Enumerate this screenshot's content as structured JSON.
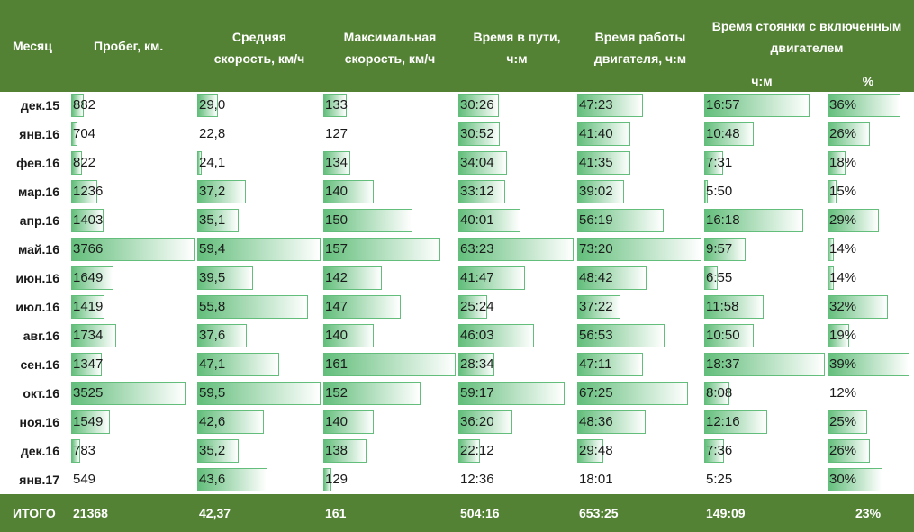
{
  "colors": {
    "header_bg": "#548235",
    "bar": "#63be7b",
    "header_text": "#ffffff"
  },
  "headers": {
    "month": "Месяц",
    "mileage": "Пробег, км.",
    "avg_speed": [
      "Средняя",
      "скорость, км/ч"
    ],
    "max_speed": [
      "Максимальная",
      "скорость, км/ч"
    ],
    "travel_time": [
      "Время в пути,",
      "ч:м"
    ],
    "engine_time": [
      "Время работы",
      "двигателя, ч:м"
    ],
    "idle": [
      "Время стоянки с включенным",
      "двигателем"
    ],
    "idle_hm": "ч:м",
    "idle_pct": "%"
  },
  "rows": [
    {
      "month": "дек.15",
      "mileage": "882",
      "avg": "29,0",
      "max": "133",
      "travel": "30:26",
      "engine": "47:23",
      "idle": "16:57",
      "pct": "36%"
    },
    {
      "month": "янв.16",
      "mileage": "704",
      "avg": "22,8",
      "max": "127",
      "travel": "30:52",
      "engine": "41:40",
      "idle": "10:48",
      "pct": "26%"
    },
    {
      "month": "фев.16",
      "mileage": "822",
      "avg": "24,1",
      "max": "134",
      "travel": "34:04",
      "engine": "41:35",
      "idle": "7:31",
      "pct": "18%"
    },
    {
      "month": "мар.16",
      "mileage": "1236",
      "avg": "37,2",
      "max": "140",
      "travel": "33:12",
      "engine": "39:02",
      "idle": "5:50",
      "pct": "15%"
    },
    {
      "month": "апр.16",
      "mileage": "1403",
      "avg": "35,1",
      "max": "150",
      "travel": "40:01",
      "engine": "56:19",
      "idle": "16:18",
      "pct": "29%"
    },
    {
      "month": "май.16",
      "mileage": "3766",
      "avg": "59,4",
      "max": "157",
      "travel": "63:23",
      "engine": "73:20",
      "idle": "9:57",
      "pct": "14%"
    },
    {
      "month": "июн.16",
      "mileage": "1649",
      "avg": "39,5",
      "max": "142",
      "travel": "41:47",
      "engine": "48:42",
      "idle": "6:55",
      "pct": "14%"
    },
    {
      "month": "июл.16",
      "mileage": "1419",
      "avg": "55,8",
      "max": "147",
      "travel": "25:24",
      "engine": "37:22",
      "idle": "11:58",
      "pct": "32%"
    },
    {
      "month": "авг.16",
      "mileage": "1734",
      "avg": "37,6",
      "max": "140",
      "travel": "46:03",
      "engine": "56:53",
      "idle": "10:50",
      "pct": "19%"
    },
    {
      "month": "сен.16",
      "mileage": "1347",
      "avg": "47,1",
      "max": "161",
      "travel": "28:34",
      "engine": "47:11",
      "idle": "18:37",
      "pct": "39%"
    },
    {
      "month": "окт.16",
      "mileage": "3525",
      "avg": "59,5",
      "max": "152",
      "travel": "59:17",
      "engine": "67:25",
      "idle": "8:08",
      "pct": "12%"
    },
    {
      "month": "ноя.16",
      "mileage": "1549",
      "avg": "42,6",
      "max": "140",
      "travel": "36:20",
      "engine": "48:36",
      "idle": "12:16",
      "pct": "25%"
    },
    {
      "month": "дек.16",
      "mileage": "783",
      "avg": "35,2",
      "max": "138",
      "travel": "22:12",
      "engine": "29:48",
      "idle": "7:36",
      "pct": "26%"
    },
    {
      "month": "янв.17",
      "mileage": "549",
      "avg": "43,6",
      "max": "129",
      "travel": "12:36",
      "engine": "18:01",
      "idle": "5:25",
      "pct": "30%"
    }
  ],
  "totals": {
    "label": "ИТОГО",
    "mileage": "21368",
    "avg": "42,37",
    "max": "161",
    "travel": "504:16",
    "engine": "653:25",
    "idle": "149:09",
    "pct": "23%"
  }
}
